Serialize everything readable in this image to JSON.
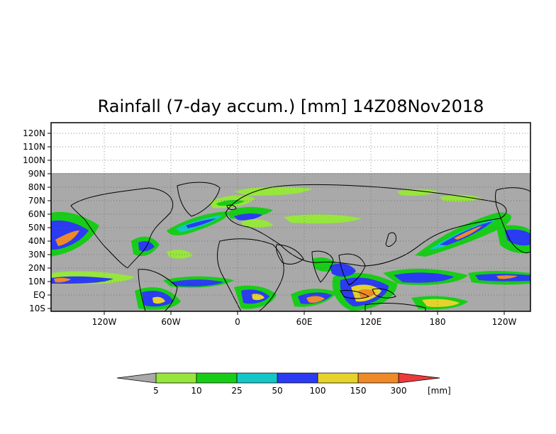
{
  "title": "Rainfall (7-day accum.) [mm] 14Z08Nov2018",
  "latitude_labels": [
    "120N",
    "110N",
    "100N",
    "90N",
    "80N",
    "70N",
    "60N",
    "50N",
    "40N",
    "30N",
    "20N",
    "10N",
    "EQ",
    "10S"
  ],
  "longitude_labels": [
    "120W",
    "60W",
    "0",
    "60E",
    "120E",
    "180",
    "120W"
  ],
  "colorbar": {
    "unit_label": "[mm]",
    "thresholds": [
      "5",
      "10",
      "25",
      "50",
      "100",
      "150",
      "300"
    ],
    "colors": [
      "#a9a9a9",
      "#97e63d",
      "#18cd18",
      "#14c6c6",
      "#2b3bf2",
      "#e5d32c",
      "#ef8a28",
      "#ec3a3a"
    ]
  },
  "colors": {
    "no_data": "#ffffff",
    "dry": "#a9a9a9",
    "coast": "#000000"
  }
}
